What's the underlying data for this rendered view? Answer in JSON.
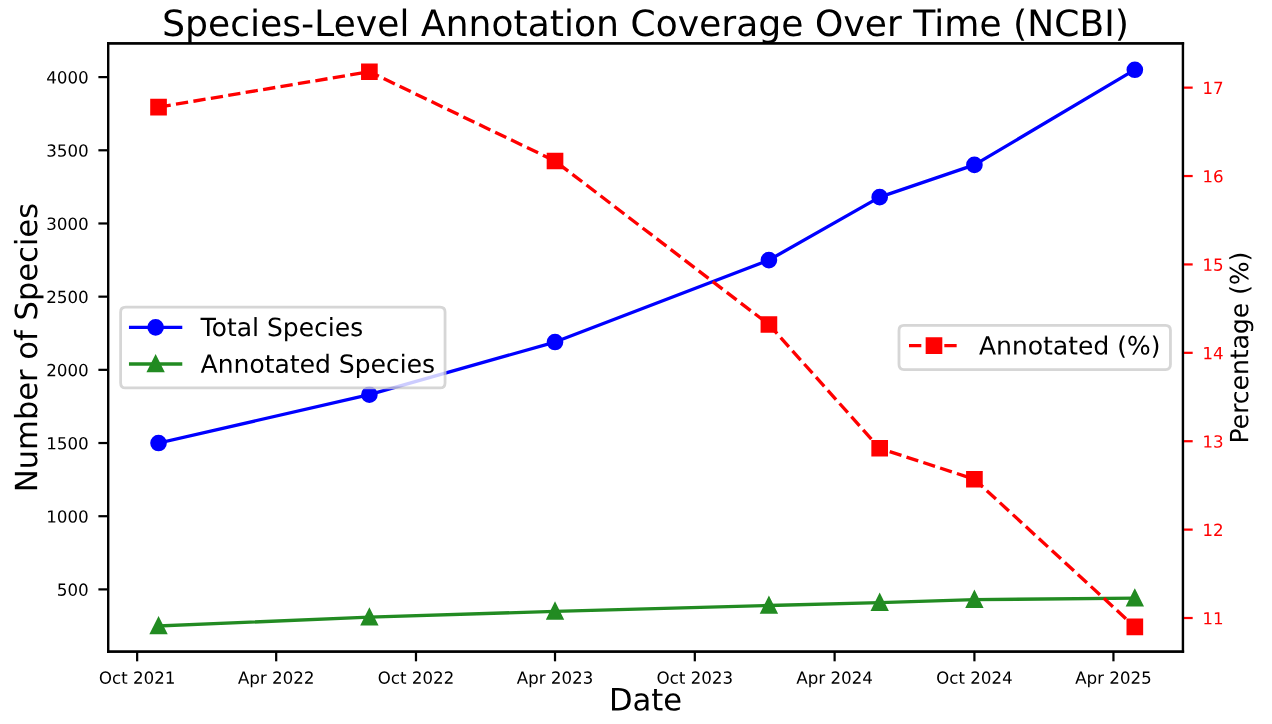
{
  "chart_data": {
    "type": "line",
    "title": "Species-Level Annotation Coverage Over Time (NCBI)",
    "xlabel": "Date",
    "ylabel": "Number of Species",
    "y2label": "Percentage (%)",
    "x": [
      "2021-10-29",
      "2022-08-01",
      "2023-04-01",
      "2024-01-06",
      "2024-05-30",
      "2024-10-01",
      "2025-04-29"
    ],
    "series": [
      {
        "name": "Total Species",
        "color": "#0000ff",
        "marker": "circle",
        "line_style": "solid",
        "values": [
          1500,
          1830,
          2190,
          2750,
          3180,
          3400,
          4050
        ]
      },
      {
        "name": "Annotated Species",
        "color": "#228b22",
        "marker": "triangle",
        "line_style": "solid",
        "values": [
          250,
          310,
          350,
          390,
          410,
          430,
          440
        ]
      },
      {
        "name": "Annotated (%)",
        "color": "#ff0000",
        "marker": "square",
        "line_style": "dashed",
        "axis": "y2",
        "values": [
          16.78,
          17.18,
          16.17,
          14.32,
          12.92,
          12.57,
          10.9
        ]
      }
    ],
    "xlim": [
      "2021-08-24",
      "2025-07-01"
    ],
    "xticks": [
      {
        "value": "2021-10-01",
        "label": "Oct 2021"
      },
      {
        "value": "2022-04-01",
        "label": "Apr 2022"
      },
      {
        "value": "2022-10-01",
        "label": "Oct 2022"
      },
      {
        "value": "2023-04-01",
        "label": "Apr 2023"
      },
      {
        "value": "2023-10-01",
        "label": "Oct 2023"
      },
      {
        "value": "2024-04-01",
        "label": "Apr 2024"
      },
      {
        "value": "2024-10-01",
        "label": "Oct 2024"
      },
      {
        "value": "2025-04-01",
        "label": "Apr 2025"
      }
    ],
    "ylim": [
      75,
      4230
    ],
    "yticks": [
      500,
      1000,
      1500,
      2000,
      2500,
      3000,
      3500,
      4000
    ],
    "y2lim": [
      10.62,
      17.5
    ],
    "y2ticks": [
      11,
      12,
      13,
      14,
      15,
      16,
      17
    ],
    "legend": [
      "center left",
      "center right"
    ],
    "grid": false
  }
}
